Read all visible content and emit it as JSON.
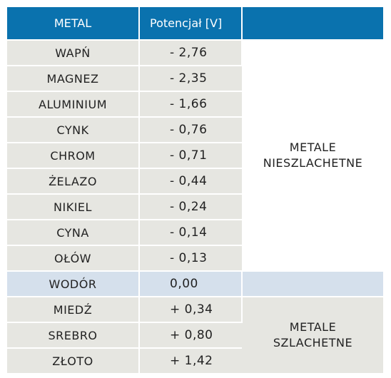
{
  "header": {
    "metal": "METAL",
    "potential": "Potencjał [V]"
  },
  "rows": [
    {
      "metal": "WAPŃ",
      "potential": "- 2,76"
    },
    {
      "metal": "MAGNEZ",
      "potential": "- 2,35"
    },
    {
      "metal": "ALUMINIUM",
      "potential": "- 1,66"
    },
    {
      "metal": "CYNK",
      "potential": "- 0,76"
    },
    {
      "metal": "CHROM",
      "potential": "- 0,71"
    },
    {
      "metal": "ŻELAZO",
      "potential": "- 0,44"
    },
    {
      "metal": "NIKIEL",
      "potential": "- 0,24"
    },
    {
      "metal": "CYNA",
      "potential": "- 0,14"
    },
    {
      "metal": "OŁÓW",
      "potential": "- 0,13"
    },
    {
      "metal": "WODÓR",
      "potential": "0,00"
    },
    {
      "metal": "MIEDŹ",
      "potential": "+ 0,34"
    },
    {
      "metal": "SREBRO",
      "potential": "+ 0,80"
    },
    {
      "metal": "ZŁOTO",
      "potential": "+ 1,42"
    }
  ],
  "groups": {
    "base_line1": "METALE",
    "base_line2": "NIESZLACHETNE",
    "noble_line1": "METALE",
    "noble_line2": "SZLACHETNE"
  },
  "colors": {
    "header_bg": "#0a72ae",
    "row_bg": "#e6e6e1",
    "hydrogen_bg": "#d5e0ec"
  }
}
